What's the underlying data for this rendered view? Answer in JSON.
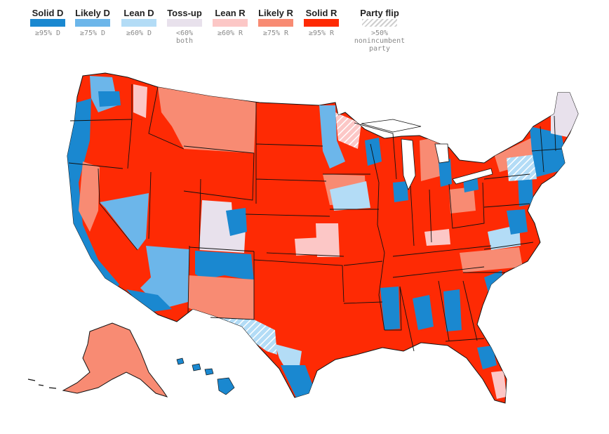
{
  "legend": [
    {
      "label": "Solid D",
      "note1": "≥95% D",
      "note2": "",
      "note3": "",
      "color": "#1a88d0",
      "hatch": false
    },
    {
      "label": "Likely D",
      "note1": "≥75% D",
      "note2": "",
      "note3": "",
      "color": "#6cb6ea",
      "hatch": false
    },
    {
      "label": "Lean D",
      "note1": "≥60% D",
      "note2": "",
      "note3": "",
      "color": "#b3dcf6",
      "hatch": false
    },
    {
      "label": "Toss-up",
      "note1": "<60%",
      "note2": "both",
      "note3": "",
      "color": "#e8e1ec",
      "hatch": false
    },
    {
      "label": "Lean R",
      "note1": "≥60% R",
      "note2": "",
      "note3": "",
      "color": "#fcc7c6",
      "hatch": false
    },
    {
      "label": "Likely R",
      "note1": "≥75% R",
      "note2": "",
      "note3": "",
      "color": "#f88b73",
      "hatch": false
    },
    {
      "label": "Solid R",
      "note1": "≥95% R",
      "note2": "",
      "note3": "",
      "color": "#fe2a04",
      "hatch": false
    },
    {
      "label": "Party flip",
      "note1": ">50%",
      "note2": "nonincumbent",
      "note3": "party",
      "color": "#d3d3d3",
      "hatch": true
    }
  ],
  "colors": {
    "solid_d": "#1a88d0",
    "likely_d": "#6cb6ea",
    "lean_d": "#b3dcf6",
    "tossup": "#e8e1ec",
    "lean_r": "#fcc7c6",
    "likely_r": "#f88b73",
    "solid_r": "#fe2a04",
    "border": "#111111"
  }
}
